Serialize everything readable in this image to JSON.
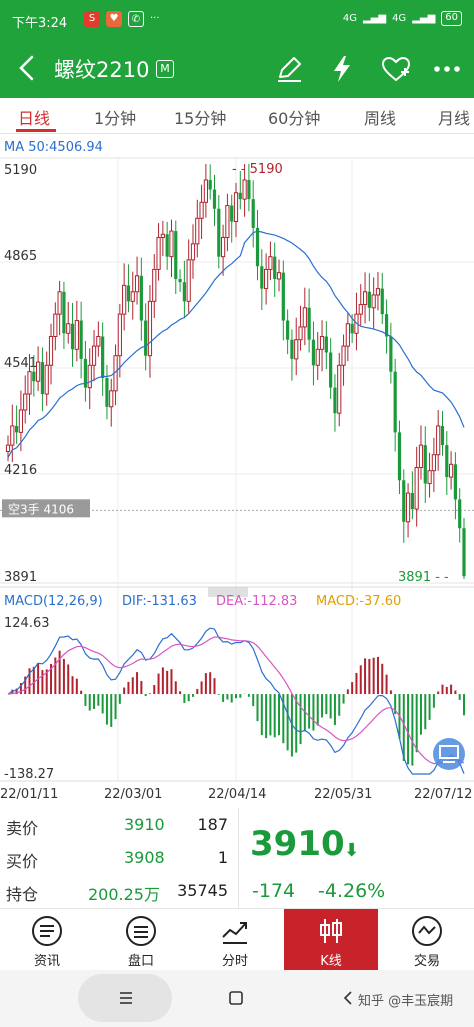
{
  "status_bar": {
    "time": "下午3:24",
    "dots": "···",
    "network_1": "4G",
    "network_2": "4G",
    "battery": "60"
  },
  "header": {
    "title": "螺纹2210",
    "badge": "M",
    "back_icon": "chevron-left-icon",
    "icons": [
      "pencil-icon",
      "lightning-icon",
      "heart-add-icon",
      "more-dots-icon"
    ]
  },
  "tabs": [
    "日线",
    "1分钟",
    "15分钟",
    "60分钟",
    "周线",
    "月线"
  ],
  "active_tab": 0,
  "colors": {
    "up": "#b0232e",
    "down": "#1a9a3a",
    "ma": "#2a6fcf",
    "dif": "#2a6fcf",
    "dea": "#d855c6",
    "macd": "#e0a000",
    "brand": "#1fa33a"
  },
  "chart_data": {
    "type": "candlestick",
    "ma_label": "MA 50:4506.94",
    "y_ticks": [
      5190,
      4865,
      4541,
      4216,
      3891
    ],
    "ylim": [
      3891,
      5190
    ],
    "x_ticks": [
      "22/01/11",
      "22/03/01",
      "22/04/14",
      "22/05/31",
      "22/07/12"
    ],
    "max_marker": "5190",
    "min_marker": "3891",
    "position_label": "空3手 4106",
    "position_price": 4106,
    "ohlc_close": [
      4310,
      4370,
      4350,
      4420,
      4470,
      4540,
      4510,
      4570,
      4470,
      4560,
      4650,
      4720,
      4790,
      4660,
      4690,
      4610,
      4700,
      4580,
      4490,
      4560,
      4620,
      4650,
      4520,
      4430,
      4480,
      4590,
      4720,
      4810,
      4760,
      4790,
      4840,
      4700,
      4590,
      4760,
      4860,
      4960,
      4970,
      4900,
      4980,
      4830,
      4820,
      4760,
      4890,
      4940,
      5020,
      5070,
      5140,
      5110,
      5050,
      4900,
      4960,
      5060,
      5010,
      5100,
      5080,
      5140,
      5080,
      4990,
      4870,
      4800,
      4860,
      4900,
      4830,
      4850,
      4700,
      4640,
      4580,
      4640,
      4680,
      4740,
      4640,
      4560,
      4610,
      4650,
      4600,
      4490,
      4410,
      4560,
      4620,
      4690,
      4660,
      4720,
      4750,
      4790,
      4740,
      4780,
      4800,
      4720,
      4650,
      4540,
      4350,
      4200,
      4070,
      4160,
      4110,
      4240,
      4310,
      4190,
      4230,
      4280,
      4370,
      4310,
      4210,
      4250,
      4140,
      4050,
      3900
    ],
    "dif_label": "DIF:-131.63",
    "dea_label": "DEA:-112.83",
    "macd_label": "MACD:-37.60",
    "macd_title": "MACD(12,26,9)",
    "macd_ylim": [
      -138.27,
      124.63
    ],
    "macd_top": "124.63",
    "macd_bottom": "-138.27"
  },
  "quote": {
    "rows": [
      {
        "label": "卖价",
        "price": "3910",
        "vol": "187"
      },
      {
        "label": "买价",
        "price": "3908",
        "vol": "1"
      },
      {
        "label": "持仓",
        "price": "200.25万",
        "vol": "35745"
      }
    ],
    "last": "3910",
    "change": "-174",
    "change_pct": "-4.26%"
  },
  "bottom_nav": [
    {
      "label": "资讯",
      "icon": "news-icon"
    },
    {
      "label": "盘口",
      "icon": "orderbook-icon"
    },
    {
      "label": "分时",
      "icon": "timeshare-icon"
    },
    {
      "label": "K线",
      "icon": "candlestick-icon"
    },
    {
      "label": "交易",
      "icon": "trade-icon"
    }
  ],
  "active_nav": 3,
  "watermark": "知乎 @丰玉宸期"
}
